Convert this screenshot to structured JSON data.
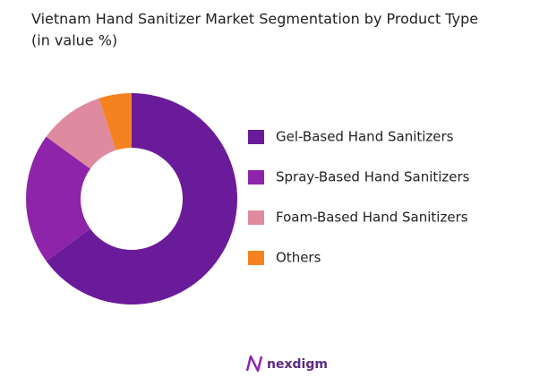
{
  "chart_data": {
    "type": "donut",
    "title": "Vietnam Hand Sanitizer Market Segmentation by Product Type",
    "subtitle": "(in value %)",
    "categories": [
      "Gel-Based Hand Sanitizers",
      "Spray-Based Hand Sanitizers",
      "Foam-Based Hand Sanitizers",
      "Others"
    ],
    "values": [
      65,
      20,
      10,
      5
    ],
    "colors": [
      "#6a1b9a",
      "#8e24aa",
      "#e08aa0",
      "#f58220"
    ],
    "legend": "right"
  },
  "brand": "nexdigm"
}
